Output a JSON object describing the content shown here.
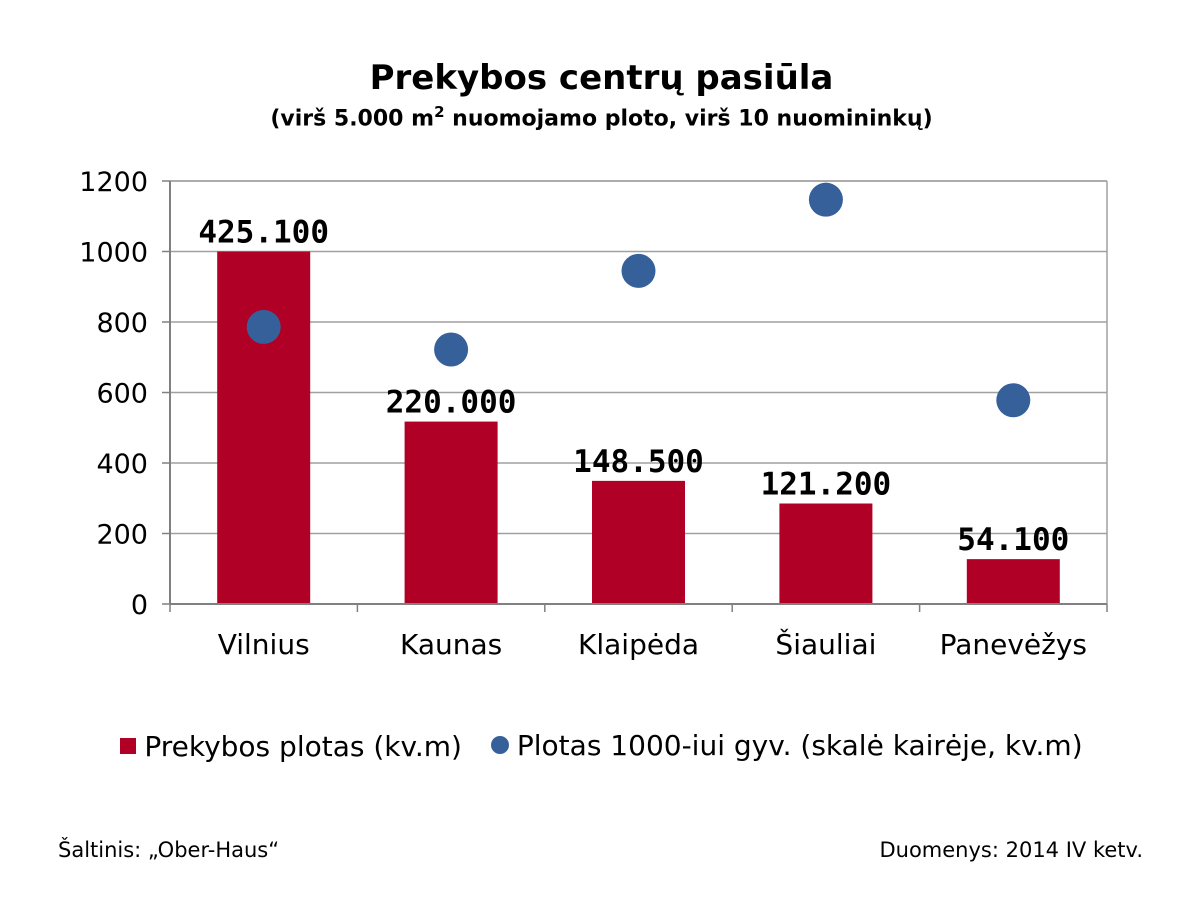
{
  "colors": {
    "bar": "#B10026",
    "dot": "#35609A",
    "grid": "#A0A0A0",
    "axis": "#808080"
  },
  "title": "Prekybos centrų pasiūla",
  "subtitle": {
    "before": "(virš 5.000 m",
    "sup": "2",
    "after": " nuomojamo ploto, virš 10 nuomininkų)"
  },
  "chart_data": {
    "type": "bar",
    "categories": [
      "Vilnius",
      "Kaunas",
      "Klaipėda",
      "Šiauliai",
      "Panevėžys"
    ],
    "series": [
      {
        "name": "Prekybos plotas (kv.m)",
        "type": "bar",
        "values": [
          425100,
          220000,
          148500,
          121200,
          54100
        ],
        "data_labels": [
          "425.100",
          "220.000",
          "148.500",
          "121.200",
          "54.100"
        ]
      },
      {
        "name": "Plotas 1000-iui gyv. (skalė kairėje, kv.m)",
        "type": "scatter",
        "values": [
          786,
          722,
          945,
          1147,
          578
        ]
      }
    ],
    "bar_axis_max": 510120,
    "ylim": [
      0,
      1200
    ],
    "yticks": [
      "0",
      "200",
      "400",
      "600",
      "800",
      "1000",
      "1200"
    ],
    "grid": true,
    "legend_position": "bottom"
  },
  "legend": {
    "bar_label": "Prekybos plotas (kv.m)",
    "dot_label": "Plotas 1000-iui gyv. (skalė kairėje, kv.m)"
  },
  "footer": {
    "source": "Šaltinis: „Ober-Haus“",
    "date": "Duomenys: 2014 IV ketv."
  }
}
